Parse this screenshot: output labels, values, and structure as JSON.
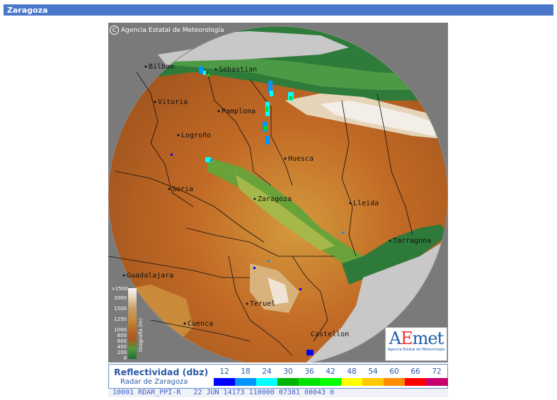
{
  "header": {
    "title": "Zaragoza"
  },
  "map": {
    "copyright": "Agencia Estatal de Meteorología",
    "copyright_symbol": "C",
    "cities": [
      {
        "name": "Bilbao"
      },
      {
        "name": "Sebastian"
      },
      {
        "name": "Vitoria"
      },
      {
        "name": "Pamplona"
      },
      {
        "name": "Logroño"
      },
      {
        "name": "Huesca"
      },
      {
        "name": "Soria"
      },
      {
        "name": "Zaragoza"
      },
      {
        "name": "Lleida"
      },
      {
        "name": "Tarragona"
      },
      {
        "name": "Guadalajara"
      },
      {
        "name": "Teruel"
      },
      {
        "name": "Cuenca"
      },
      {
        "name": "Castellon"
      }
    ],
    "logo": {
      "brand_a": "A",
      "brand_e": "E",
      "brand_rest": "met",
      "subtitle": "Agencia Estatal de Meteorología"
    },
    "orography": {
      "title": "Orografía (m)",
      "levels": [
        ">2500",
        "2000",
        "1500",
        "1250",
        "1000",
        "800",
        "600",
        "400",
        "200",
        "0"
      ]
    }
  },
  "legend": {
    "title": "Reflectividad (dbz)",
    "subtitle": "Radar de Zaragoza",
    "scale": [
      {
        "value": "12",
        "color": "#0000ff"
      },
      {
        "value": "18",
        "color": "#0096ff"
      },
      {
        "value": "24",
        "color": "#00ffff"
      },
      {
        "value": "30",
        "color": "#00b400"
      },
      {
        "value": "36",
        "color": "#00e100"
      },
      {
        "value": "42",
        "color": "#00ff00"
      },
      {
        "value": "48",
        "color": "#ffff00"
      },
      {
        "value": "54",
        "color": "#ffc800"
      },
      {
        "value": "60",
        "color": "#ff8c00"
      },
      {
        "value": "66",
        "color": "#ff0000"
      },
      {
        "value": "72",
        "color": "#c8006e"
      }
    ]
  },
  "status": {
    "text": " 10001 RDAR_PPI-R   22 JUN 14173 110000 07381 00043 0"
  }
}
